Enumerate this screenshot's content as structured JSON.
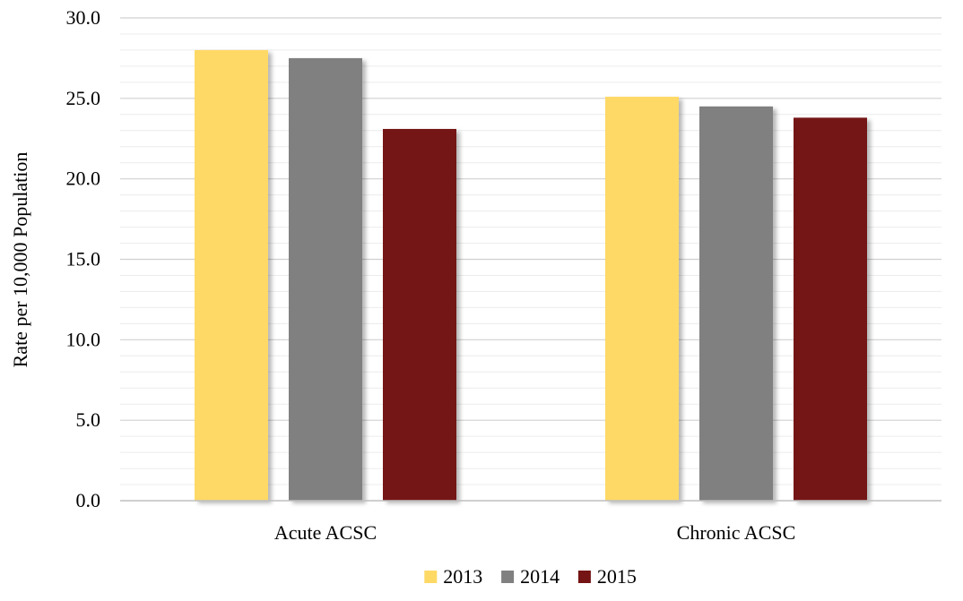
{
  "chart_data": {
    "type": "bar",
    "ylabel": "Rate per 10,000 Population",
    "categories": [
      "Acute ACSC",
      "Chronic ACSC"
    ],
    "series": [
      {
        "name": "2013",
        "color": "#FFD966",
        "values": [
          28.0,
          25.1
        ]
      },
      {
        "name": "2014",
        "color": "#808080",
        "values": [
          27.5,
          24.5
        ]
      },
      {
        "name": "2015",
        "color": "#741414",
        "values": [
          23.1,
          23.8
        ]
      }
    ],
    "ylim": [
      0,
      30
    ],
    "yticks": [
      "0.0",
      "5.0",
      "10.0",
      "15.0",
      "20.0",
      "25.0",
      "30.0"
    ],
    "grid": true,
    "legend_position": "bottom"
  }
}
